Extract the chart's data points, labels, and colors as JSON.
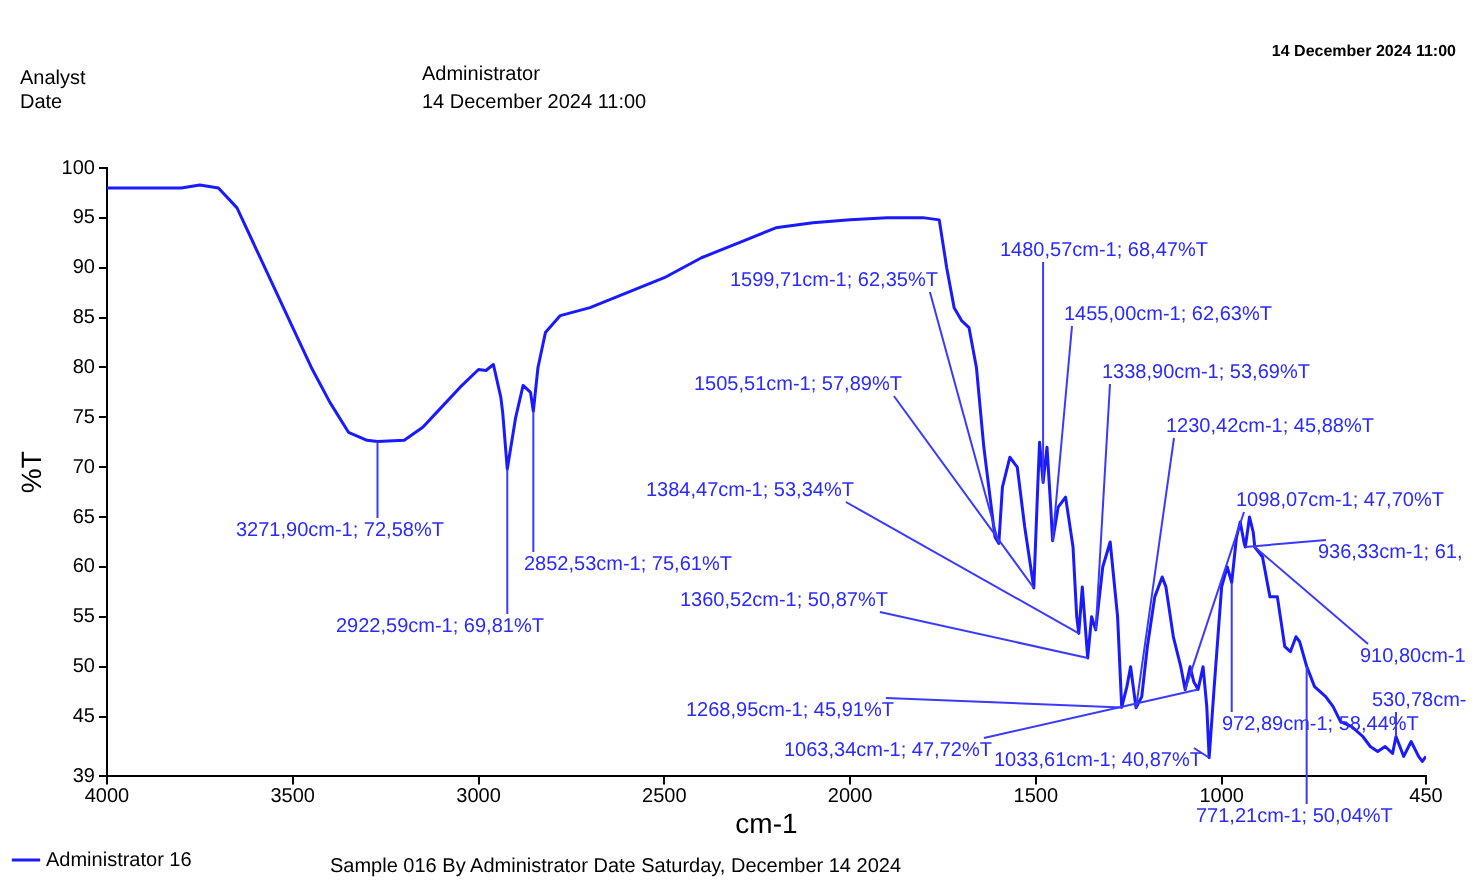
{
  "chart_data": {
    "type": "line",
    "xlabel": "cm-1",
    "ylabel": "%T",
    "xlim": [
      4000,
      450
    ],
    "xticks": [
      4000,
      3500,
      3000,
      2500,
      2000,
      1500,
      1000,
      450
    ],
    "ylim": [
      39,
      100
    ],
    "yticks": [
      39,
      45,
      50,
      55,
      60,
      65,
      70,
      75,
      80,
      85,
      90,
      95,
      100
    ],
    "grid": false,
    "legend": "bottom",
    "marker": "none",
    "line_style": "solid",
    "series": [
      {
        "name": "Administrator 16",
        "color": "#1a1aff",
        "x": [
          4000,
          3800,
          3750,
          3700,
          3650,
          3600,
          3500,
          3450,
          3400,
          3350,
          3300,
          3271.9,
          3200,
          3150,
          3100,
          3050,
          3000,
          2980,
          2960,
          2940,
          2935,
          2922.59,
          2900,
          2880,
          2860,
          2852.53,
          2840,
          2820,
          2780,
          2700,
          2600,
          2500,
          2400,
          2300,
          2200,
          2100,
          2000,
          1900,
          1800,
          1760,
          1740,
          1720,
          1700,
          1680,
          1660,
          1640,
          1620,
          1610,
          1599.71,
          1590,
          1570,
          1550,
          1530,
          1505.51,
          1495,
          1490,
          1480.57,
          1470,
          1460,
          1455,
          1440,
          1420,
          1400,
          1390,
          1384.47,
          1375,
          1360.52,
          1350,
          1338.9,
          1320,
          1300,
          1280,
          1268.95,
          1255,
          1245,
          1238,
          1230.42,
          1215,
          1200,
          1180,
          1160,
          1150,
          1130,
          1110,
          1098.07,
          1085,
          1075,
          1063.34,
          1050,
          1040,
          1033.61,
          1020,
          1000,
          985,
          972.89,
          960,
          950,
          940,
          936.33,
          925,
          915,
          910.8,
          890,
          870,
          850,
          830,
          815,
          800,
          790,
          771.21,
          750,
          720,
          700,
          680,
          650,
          620,
          600,
          580,
          560,
          540,
          530.78,
          510,
          490,
          470,
          460,
          450
        ],
        "values": [
          98,
          98,
          98.3,
          98,
          96,
          92,
          84,
          80,
          76.5,
          73.5,
          72.7,
          72.58,
          72.7,
          74,
          76,
          78,
          79.8,
          79.7,
          80.3,
          77,
          75.5,
          69.81,
          75,
          78.2,
          77.5,
          75.61,
          80,
          83.5,
          85.2,
          86,
          87.5,
          89,
          91,
          92.5,
          94,
          94.5,
          94.8,
          95,
          95,
          94.8,
          90,
          86,
          84.7,
          84,
          80,
          72,
          66,
          63,
          62.35,
          68,
          71,
          70,
          64,
          57.89,
          68,
          72.5,
          68.47,
          72,
          66,
          62.63,
          66,
          67,
          62,
          55,
          53.34,
          58,
          50.87,
          55,
          53.69,
          60,
          62.5,
          55,
          45.91,
          48,
          50,
          48,
          45.88,
          47,
          52,
          57,
          59,
          58,
          53,
          50,
          47.7,
          50,
          48.5,
          47.72,
          50,
          46,
          40.87,
          48,
          58,
          60,
          58.44,
          63,
          64.5,
          62.5,
          62,
          65,
          63.5,
          62,
          61,
          57,
          57,
          52,
          51.5,
          53,
          52.5,
          50.04,
          48,
          47,
          46,
          44.5,
          44,
          43,
          42,
          41.5,
          42,
          41.3,
          43,
          41,
          42.5,
          41,
          40.5,
          41
        ]
      }
    ],
    "annotations": [
      "Analyst",
      "Date",
      "Administrator",
      "14 December 2024 11:00",
      "14 December 2024 11:00",
      "Sample 016 By Administrator Date Saturday, December 14 2024",
      {
        "text": "3271,90cm-1; 72,58%T",
        "x": 3271.9,
        "y": 72.58
      },
      {
        "text": "2922,59cm-1; 69,81%T",
        "x": 2922.59,
        "y": 69.81
      },
      {
        "text": "2852,53cm-1; 75,61%T",
        "x": 2852.53,
        "y": 75.61
      },
      {
        "text": "1599,71cm-1; 62,35%T",
        "x": 1599.71,
        "y": 62.35
      },
      {
        "text": "1480,57cm-1; 68,47%T",
        "x": 1480.57,
        "y": 68.47
      },
      {
        "text": "1455,00cm-1; 62,63%T",
        "x": 1455,
        "y": 62.63
      },
      {
        "text": "1505,51cm-1; 57,89%T",
        "x": 1505.51,
        "y": 57.89
      },
      {
        "text": "1338,90cm-1; 53,69%T",
        "x": 1338.9,
        "y": 53.69
      },
      {
        "text": "1230,42cm-1; 45,88%T",
        "x": 1230.42,
        "y": 45.88
      },
      {
        "text": "1098,07cm-1; 47,70%T",
        "x": 1098.07,
        "y": 47.7
      },
      {
        "text": "1384,47cm-1; 53,34%T",
        "x": 1384.47,
        "y": 53.34
      },
      {
        "text": "1360,52cm-1; 50,87%T",
        "x": 1360.52,
        "y": 50.87
      },
      {
        "text": "936,33cm-1; 61,",
        "x": 936.33,
        "y": 62
      },
      {
        "text": "910,80cm-1",
        "x": 910.8,
        "y": 62
      },
      {
        "text": "1268,95cm-1; 45,91%T",
        "x": 1268.95,
        "y": 45.91
      },
      {
        "text": "972,89cm-1; 58,44%T",
        "x": 972.89,
        "y": 58.44
      },
      {
        "text": "530,78cm-",
        "x": 530.78,
        "y": 43
      },
      {
        "text": "1063,34cm-1; 47,72%T",
        "x": 1063.34,
        "y": 47.72
      },
      {
        "text": "1033,61cm-1; 40,87%T",
        "x": 1033.61,
        "y": 40.87
      },
      {
        "text": "771,21cm-1; 50,04%T",
        "x": 771.21,
        "y": 50.04
      }
    ]
  }
}
